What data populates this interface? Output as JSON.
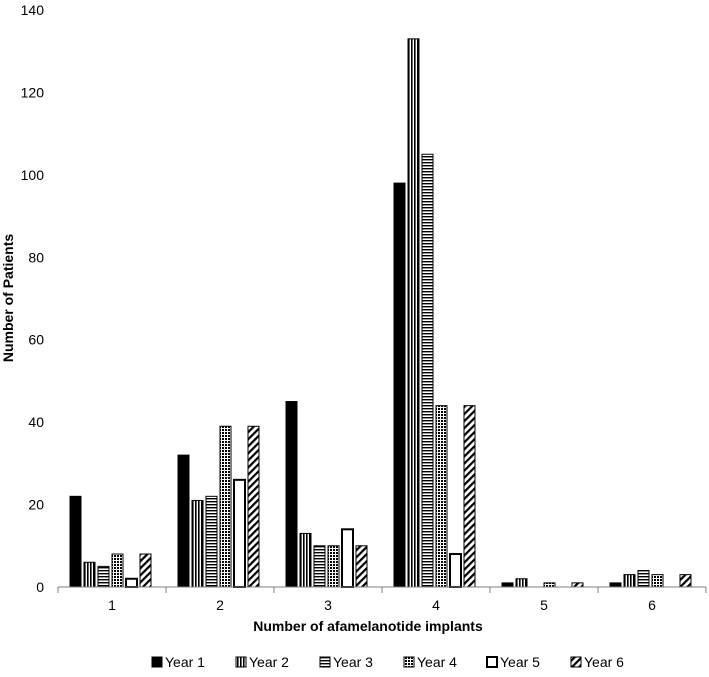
{
  "chart_data": {
    "type": "bar",
    "title": "",
    "xlabel": "Number of afamelanotide implants",
    "ylabel": "Number of Patients",
    "categories": [
      "1",
      "2",
      "3",
      "4",
      "5",
      "6"
    ],
    "ylim": [
      0,
      140
    ],
    "yticks": [
      0,
      20,
      40,
      60,
      80,
      100,
      120,
      140
    ],
    "grid": false,
    "legend_position": "bottom",
    "series": [
      {
        "name": "Year 1",
        "pattern": "solid",
        "values": [
          22,
          32,
          45,
          98,
          1,
          1
        ]
      },
      {
        "name": "Year 2",
        "pattern": "vertical",
        "values": [
          6,
          21,
          13,
          133,
          2,
          3
        ]
      },
      {
        "name": "Year 3",
        "pattern": "horizontal",
        "values": [
          5,
          22,
          10,
          105,
          0,
          4
        ]
      },
      {
        "name": "Year 4",
        "pattern": "dotted",
        "values": [
          8,
          39,
          10,
          44,
          1,
          3
        ]
      },
      {
        "name": "Year 5",
        "pattern": "hollow",
        "values": [
          2,
          26,
          14,
          8,
          0,
          0
        ]
      },
      {
        "name": "Year 6",
        "pattern": "diagonal",
        "values": [
          8,
          39,
          10,
          44,
          1,
          3
        ]
      }
    ]
  },
  "colors": {
    "ink": "#000000",
    "axis": "#7f7f7f",
    "background": "#ffffff"
  }
}
